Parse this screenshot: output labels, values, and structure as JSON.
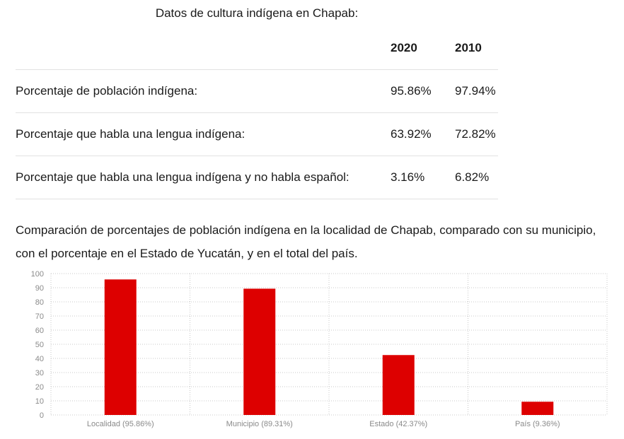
{
  "table": {
    "caption": "Datos de cultura indígena en Chapab:",
    "years": [
      "2020",
      "2010"
    ],
    "rows": [
      {
        "label": "Porcentaje de población indígena:",
        "v2020": "95.86%",
        "v2010": "97.94%"
      },
      {
        "label": "Porcentaje que habla una lengua indígena:",
        "v2020": "63.92%",
        "v2010": "72.82%"
      },
      {
        "label": "Porcentaje que habla una lengua indígena y no habla español:",
        "v2020": "3.16%",
        "v2010": "6.82%"
      }
    ]
  },
  "comparison_text": "Comparación de porcentajes de población indígena en la localidad de Chapab, comparado con su municipio, con el porcentaje en el Estado de Yucatán, y en el total del país.",
  "chart_data": {
    "type": "bar",
    "categories": [
      "Localidad (95.86%)",
      "Municipio (89.31%)",
      "Estado (42.37%)",
      "País (9.36%)"
    ],
    "values": [
      95.86,
      89.31,
      42.37,
      9.36
    ],
    "ylim": [
      0,
      100
    ],
    "yticks": [
      0,
      10,
      20,
      30,
      40,
      50,
      60,
      70,
      80,
      90,
      100
    ],
    "grid": true,
    "bar_color": "#dd0000",
    "title": "",
    "xlabel": "",
    "ylabel": ""
  }
}
